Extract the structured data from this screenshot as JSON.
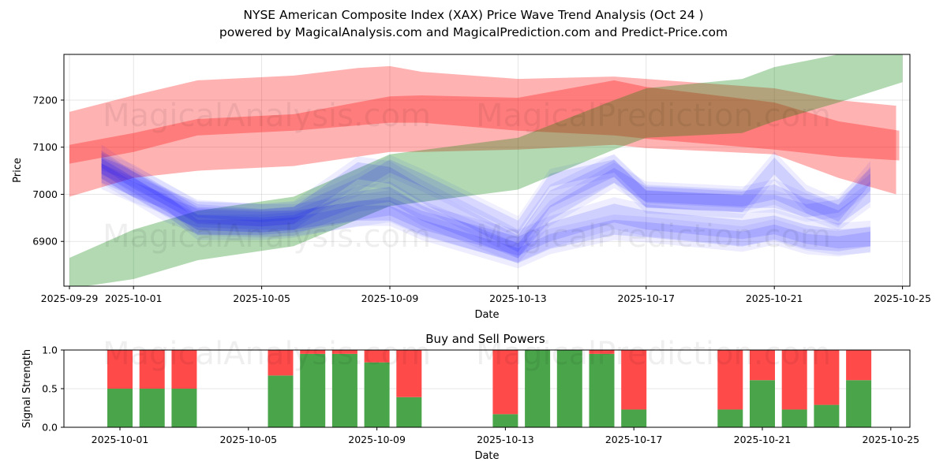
{
  "header": {
    "title": "NYSE American Composite Index (XAX) Price Wave Trend Analysis (Oct 24 )",
    "subtitle": "powered by MagicalAnalysis.com and MagicalPrediction.com and Predict-Price.com"
  },
  "watermarks": [
    "MagicalAnalysis.com",
    "MagicalPrediction.com"
  ],
  "chart_data": [
    {
      "type": "area",
      "title": "",
      "xlabel": "Date",
      "ylabel": "Price",
      "x_ticks": [
        "2025-09-29",
        "2025-10-01",
        "2025-10-05",
        "2025-10-09",
        "2025-10-13",
        "2025-10-17",
        "2025-10-21",
        "2025-10-25"
      ],
      "y_ticks": [
        6900,
        7000,
        7100,
        7200
      ],
      "xlim": [
        "2025-09-28.8",
        "2025-10-25.2"
      ],
      "ylim": [
        6805,
        7297
      ],
      "grid": true,
      "series": [
        {
          "name": "red-wave-outer",
          "color": "#ff0000",
          "opacity": 0.3,
          "dates": [
            "2025-09-29",
            "2025-10-01",
            "2025-10-03",
            "2025-10-06",
            "2025-10-08",
            "2025-10-09",
            "2025-10-10",
            "2025-10-13",
            "2025-10-16",
            "2025-10-17",
            "2025-10-21",
            "2025-10-23",
            "2025-10-24.8"
          ],
          "upper": [
            7175,
            7210,
            7242,
            7252,
            7268,
            7272,
            7260,
            7245,
            7250,
            7245,
            7225,
            7200,
            7188
          ],
          "lower": [
            6995,
            7035,
            7050,
            7060,
            7080,
            7090,
            7090,
            7095,
            7105,
            7098,
            7085,
            7035,
            7000
          ]
        },
        {
          "name": "red-wave-inner",
          "color": "#ff0000",
          "opacity": 0.3,
          "dates": [
            "2025-09-29",
            "2025-10-01",
            "2025-10-03",
            "2025-10-06",
            "2025-10-09",
            "2025-10-10",
            "2025-10-13",
            "2025-10-16",
            "2025-10-17",
            "2025-10-21",
            "2025-10-23",
            "2025-10-24.9"
          ],
          "upper": [
            7105,
            7130,
            7160,
            7170,
            7208,
            7210,
            7205,
            7242,
            7228,
            7195,
            7155,
            7135
          ],
          "lower": [
            7065,
            7090,
            7125,
            7135,
            7152,
            7152,
            7135,
            7125,
            7118,
            7095,
            7080,
            7072
          ]
        },
        {
          "name": "green-trend",
          "color": "#008000",
          "opacity": 0.3,
          "dates": [
            "2025-09-29",
            "2025-10-01",
            "2025-10-03",
            "2025-10-06",
            "2025-10-09",
            "2025-10-13",
            "2025-10-16",
            "2025-10-17",
            "2025-10-20",
            "2025-10-21",
            "2025-10-23",
            "2025-10-25"
          ],
          "upper": [
            6865,
            6925,
            6965,
            6995,
            7085,
            7120,
            7200,
            7225,
            7245,
            7270,
            7297,
            7297
          ],
          "lower": [
            6800,
            6820,
            6860,
            6890,
            6975,
            7010,
            7095,
            7120,
            7130,
            7155,
            7195,
            7238
          ]
        },
        {
          "name": "blue-wave-1",
          "color": "#0000ff",
          "opacity": 0.12,
          "dates": [
            "2025-09-30",
            "2025-10-01",
            "2025-10-02",
            "2025-10-03",
            "2025-10-05",
            "2025-10-06",
            "2025-10-08",
            "2025-10-09",
            "2025-10-10",
            "2025-10-13",
            "2025-10-14",
            "2025-10-16",
            "2025-10-17",
            "2025-10-20",
            "2025-10-21",
            "2025-10-22",
            "2025-10-23",
            "2025-10-24"
          ],
          "center": [
            7075,
            7030,
            6995,
            6955,
            6950,
            6955,
            7050,
            7040,
            7000,
            6895,
            6990,
            7055,
            6990,
            6980,
            7060,
            6990,
            6960,
            7040
          ],
          "half_width": 18
        },
        {
          "name": "blue-wave-2",
          "color": "#0000ff",
          "opacity": 0.12,
          "dates": [
            "2025-09-30",
            "2025-10-01",
            "2025-10-02",
            "2025-10-03",
            "2025-10-05",
            "2025-10-06",
            "2025-10-08",
            "2025-10-09",
            "2025-10-10",
            "2025-10-13",
            "2025-10-14",
            "2025-10-16",
            "2025-10-17",
            "2025-10-20",
            "2025-10-21",
            "2025-10-22",
            "2025-10-23",
            "2025-10-24"
          ],
          "center": [
            7060,
            7020,
            6980,
            6940,
            6935,
            6940,
            6990,
            7000,
            6960,
            6880,
            6960,
            7040,
            7000,
            6990,
            7005,
            6975,
            6950,
            7000
          ],
          "half_width": 16
        },
        {
          "name": "blue-wave-3",
          "color": "#0000ff",
          "opacity": 0.12,
          "dates": [
            "2025-09-30",
            "2025-10-01",
            "2025-10-02",
            "2025-10-03",
            "2025-10-05",
            "2025-10-06",
            "2025-10-08",
            "2025-10-09",
            "2025-10-10",
            "2025-10-13",
            "2025-10-14",
            "2025-10-16",
            "2025-10-17",
            "2025-10-20",
            "2025-10-21",
            "2025-10-22",
            "2025-10-23",
            "2025-10-24"
          ],
          "center": [
            7050,
            7010,
            6985,
            6930,
            6930,
            6935,
            6960,
            6960,
            6930,
            6870,
            6900,
            6930,
            6925,
            6905,
            6920,
            6900,
            6895,
            6905
          ],
          "half_width": 16
        },
        {
          "name": "blue-wave-4",
          "color": "#0000ff",
          "opacity": 0.12,
          "dates": [
            "2025-09-30",
            "2025-10-01",
            "2025-10-02",
            "2025-10-03",
            "2025-10-05",
            "2025-10-06",
            "2025-10-08",
            "2025-10-09",
            "2025-10-10",
            "2025-10-13",
            "2025-10-14",
            "2025-10-16",
            "2025-10-17",
            "2025-10-20",
            "2025-10-21",
            "2025-10-22",
            "2025-10-23",
            "2025-10-24"
          ],
          "center": [
            7045,
            7015,
            6975,
            6950,
            6945,
            6945,
            6965,
            6975,
            6945,
            6890,
            6920,
            6960,
            6945,
            6925,
            6935,
            6915,
            6905,
            6910
          ],
          "half_width": 20
        },
        {
          "name": "blue-wave-5",
          "color": "#0000ff",
          "opacity": 0.1,
          "dates": [
            "2025-09-30",
            "2025-10-01",
            "2025-10-02",
            "2025-10-03",
            "2025-10-05",
            "2025-10-06",
            "2025-10-08",
            "2025-10-09",
            "2025-10-10",
            "2025-10-13",
            "2025-10-14",
            "2025-10-16",
            "2025-10-17",
            "2025-10-20",
            "2025-10-21",
            "2025-10-22",
            "2025-10-23",
            "2025-10-24"
          ],
          "center": [
            7065,
            7040,
            7000,
            6965,
            6955,
            6960,
            7020,
            7060,
            7030,
            6930,
            7030,
            7060,
            6995,
            6985,
            6985,
            6965,
            6975,
            7030
          ],
          "half_width": 14
        }
      ]
    },
    {
      "type": "bar",
      "title": "Buy and Sell Powers",
      "xlabel": "Date",
      "ylabel": "Signal Strength",
      "x_ticks": [
        "2025-10-01",
        "2025-10-05",
        "2025-10-09",
        "2025-10-13",
        "2025-10-17",
        "2025-10-21",
        "2025-10-25"
      ],
      "y_ticks": [
        "0.0",
        "0.5",
        "1.0"
      ],
      "ylim": [
        0,
        1
      ],
      "grid": true,
      "categories": [
        "2025-10-01",
        "2025-10-02",
        "2025-10-03",
        "2025-10-06",
        "2025-10-07",
        "2025-10-08",
        "2025-10-09",
        "2025-10-10",
        "2025-10-13",
        "2025-10-14",
        "2025-10-15",
        "2025-10-16",
        "2025-10-17",
        "2025-10-20",
        "2025-10-21",
        "2025-10-22",
        "2025-10-23",
        "2025-10-24"
      ],
      "series": [
        {
          "name": "Buy",
          "color": "#4aa54a",
          "values": [
            0.5,
            0.5,
            0.5,
            0.67,
            0.95,
            0.95,
            0.84,
            0.39,
            0.17,
            1.0,
            1.0,
            0.95,
            0.23,
            0.23,
            0.61,
            0.23,
            0.29,
            0.61
          ]
        },
        {
          "name": "Sell",
          "color": "#ff4a4a",
          "values": [
            0.5,
            0.5,
            0.5,
            0.33,
            0.05,
            0.05,
            0.16,
            0.61,
            0.83,
            0.0,
            0.0,
            0.05,
            0.77,
            0.77,
            0.39,
            0.77,
            0.71,
            0.39
          ]
        }
      ]
    }
  ]
}
